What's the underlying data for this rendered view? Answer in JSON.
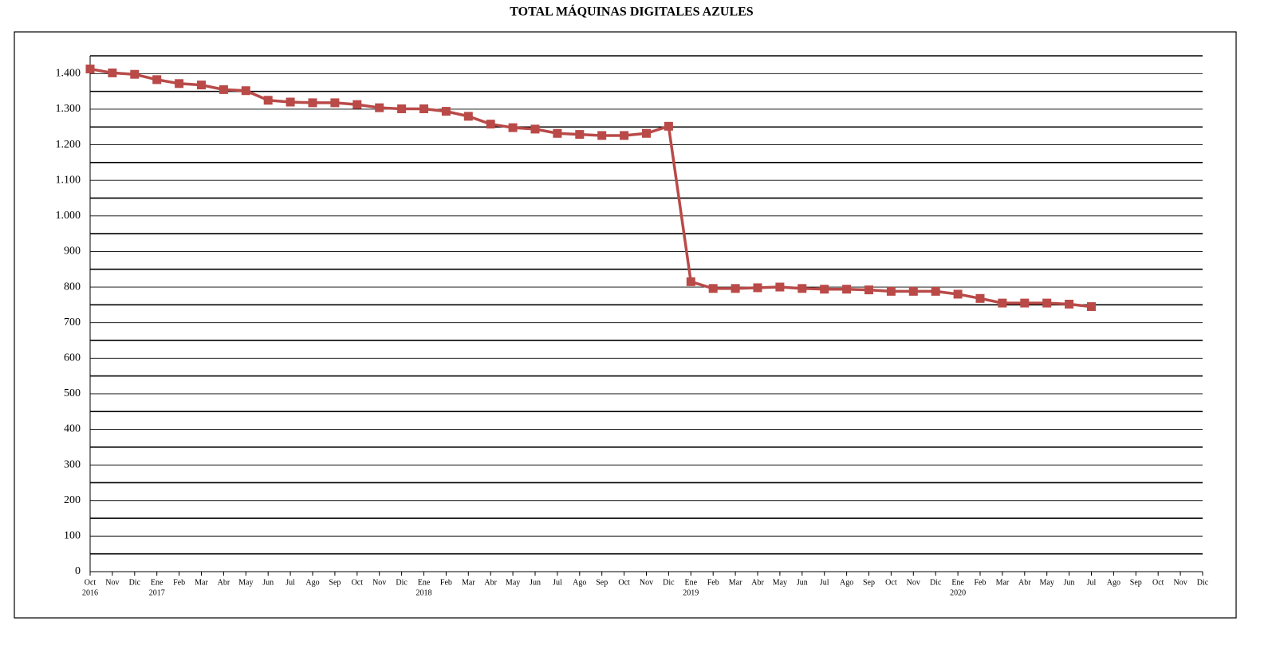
{
  "chart_data": {
    "type": "line",
    "title": "TOTAL MÁQUINAS DIGITALES AZULES",
    "categories": [
      "Oct",
      "Nov",
      "Dic",
      "Ene",
      "Feb",
      "Mar",
      "Abr",
      "May",
      "Jun",
      "Jul",
      "Ago",
      "Sep",
      "Oct",
      "Nov",
      "Dic",
      "Ene",
      "Feb",
      "Mar",
      "Abr",
      "May",
      "Jun",
      "Jul",
      "Ago",
      "Sep",
      "Oct",
      "Nov",
      "Dic",
      "Ene",
      "Feb",
      "Mar",
      "Abr",
      "May",
      "Jun",
      "Jul",
      "Ago",
      "Sep",
      "Oct",
      "Nov",
      "Dic",
      "Ene",
      "Feb",
      "Mar",
      "Abr",
      "May",
      "Jun",
      "Jul",
      "Ago",
      "Sep",
      "Oct",
      "Nov",
      "Dic"
    ],
    "category_years": [
      "2016",
      null,
      null,
      "2017",
      null,
      null,
      null,
      null,
      null,
      null,
      null,
      null,
      null,
      null,
      null,
      "2018",
      null,
      null,
      null,
      null,
      null,
      null,
      null,
      null,
      null,
      null,
      null,
      "2019",
      null,
      null,
      null,
      null,
      null,
      null,
      null,
      null,
      null,
      null,
      null,
      "2020",
      null,
      null,
      null,
      null,
      null,
      null,
      null,
      null,
      null,
      null,
      null
    ],
    "series": [
      {
        "color": "#b94a48",
        "values": [
          1413,
          1402,
          1398,
          1383,
          1372,
          1368,
          1355,
          1352,
          1325,
          1320,
          1318,
          1318,
          1313,
          1304,
          1301,
          1301,
          1294,
          1280,
          1258,
          1248,
          1244,
          1232,
          1229,
          1226,
          1226,
          1232,
          1252,
          815,
          796,
          796,
          798,
          800,
          796,
          794,
          794,
          792,
          788,
          788,
          788,
          780,
          768,
          755,
          755,
          755,
          752,
          745,
          null,
          null,
          null,
          null,
          null
        ]
      }
    ],
    "ylim": [
      0,
      1450
    ],
    "yticks": [
      0,
      100,
      200,
      300,
      400,
      500,
      600,
      700,
      800,
      900,
      {
        "value": 1000,
        "label": "1.000"
      },
      {
        "value": 1100,
        "label": "1.100"
      },
      {
        "value": 1200,
        "label": "1.200"
      },
      {
        "value": 1300,
        "label": "1.300"
      },
      {
        "value": 1400,
        "label": "1.400"
      }
    ],
    "minor_yticks": [
      50,
      150,
      250,
      350,
      450,
      550,
      650,
      750,
      850,
      950,
      1050,
      1150,
      1250,
      1350,
      1450
    ],
    "grid": true
  }
}
